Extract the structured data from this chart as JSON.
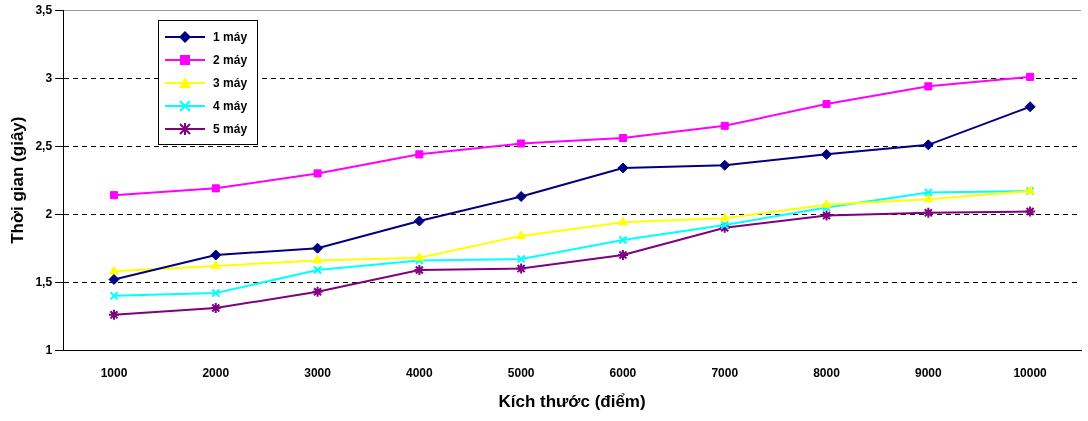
{
  "chart_data": {
    "type": "line",
    "xlabel": "Kích thước (điểm)",
    "ylabel": "Thời gian (giây)",
    "categories": [
      "1000",
      "2000",
      "3000",
      "4000",
      "5000",
      "6000",
      "7000",
      "8000",
      "9000",
      "10000"
    ],
    "ylim": [
      1,
      3.5
    ],
    "yticks": [
      1,
      {
        "value": 1.5,
        "label": "1,5"
      },
      2,
      {
        "value": 2.5,
        "label": "2,5"
      },
      3,
      {
        "value": 3.5,
        "label": "3,5"
      }
    ],
    "grid": "y",
    "legend": "top left",
    "series": [
      {
        "name": "1 máy",
        "color": "#000080",
        "marker": "diamond",
        "values": [
          1.52,
          1.7,
          1.75,
          1.95,
          2.13,
          2.34,
          2.36,
          2.44,
          2.51,
          2.79
        ]
      },
      {
        "name": "2 máy",
        "color": "#ff00ff",
        "marker": "square",
        "values": [
          2.14,
          2.19,
          2.3,
          2.44,
          2.52,
          2.56,
          2.65,
          2.81,
          2.94,
          3.01
        ]
      },
      {
        "name": "3 máy",
        "color": "#ffff00",
        "marker": "triangle",
        "values": [
          1.58,
          1.62,
          1.66,
          1.68,
          1.84,
          1.94,
          1.97,
          2.07,
          2.11,
          2.17
        ]
      },
      {
        "name": "4 máy",
        "color": "#00ffff",
        "marker": "cross",
        "values": [
          1.4,
          1.42,
          1.59,
          1.66,
          1.67,
          1.81,
          1.92,
          2.05,
          2.16,
          2.17
        ]
      },
      {
        "name": "5 máy",
        "color": "#800080",
        "marker": "cross",
        "values": [
          1.26,
          1.31,
          1.43,
          1.59,
          1.6,
          1.7,
          1.9,
          1.99,
          2.01,
          2.02
        ]
      }
    ]
  }
}
